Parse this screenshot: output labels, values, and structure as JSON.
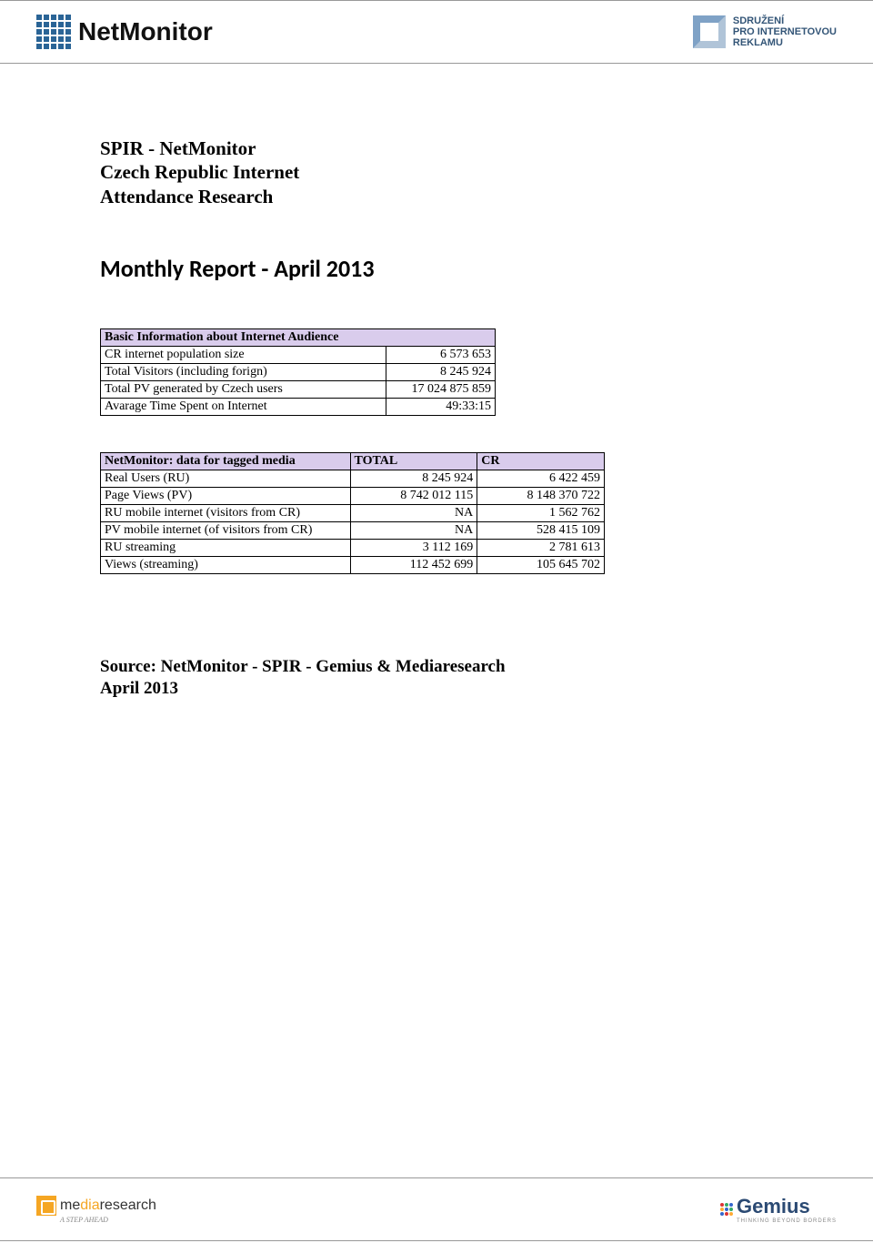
{
  "header": {
    "brand_main": "NetMonitor",
    "right_line1": "SDRUŽENÍ",
    "right_line2": "PRO INTERNETOVOU",
    "right_line3": "REKLAMU"
  },
  "title": {
    "line1": "SPIR - NetMonitor",
    "line2": "Czech Republic Internet",
    "line3": "Attendance Research"
  },
  "report_heading": "Monthly Report - April 2013",
  "table1": {
    "header": "Basic Information about Internet Audience",
    "rows": [
      {
        "label": "CR internet population size",
        "value": "6 573 653"
      },
      {
        "label": "Total Visitors (including forign)",
        "value": "8 245 924"
      },
      {
        "label": "Total PV generated by Czech users",
        "value": "17 024 875 859"
      },
      {
        "label": "Avarage Time Spent on Internet",
        "value": "49:33:15"
      }
    ]
  },
  "table2": {
    "header": {
      "c1": "NetMonitor: data for tagged media",
      "c2": "TOTAL",
      "c3": "CR"
    },
    "rows": [
      {
        "label": "Real Users (RU)",
        "total": "8 245 924",
        "cr": "6 422 459"
      },
      {
        "label": "Page Views (PV)",
        "total": "8 742 012 115",
        "cr": "8 148 370 722"
      },
      {
        "label": "RU mobile internet (visitors from CR)",
        "total": "NA",
        "cr": "1 562 762"
      },
      {
        "label": "PV mobile internet (of visitors from CR)",
        "total": "NA",
        "cr": "528 415 109"
      },
      {
        "label": "RU streaming",
        "total": "3 112 169",
        "cr": "2 781 613"
      },
      {
        "label": "Views (streaming)",
        "total": "112 452 699",
        "cr": "105 645 702"
      }
    ]
  },
  "source": {
    "line1": "Source: NetMonitor - SPIR - Gemius & Mediaresearch",
    "line2": "April 2013"
  },
  "footer": {
    "left_brand_pre": "me",
    "left_brand_mid": "dia",
    "left_brand_post": "research",
    "left_tag": "A STEP AHEAD",
    "right_brand": "Gemius",
    "right_tag": "THINKING BEYOND BORDERS"
  },
  "colors": {
    "table_header_bg": "#d9ccec",
    "border": "#000000",
    "logo_blue": "#2a6496",
    "footer_orange": "#f5a623",
    "gemius_blue": "#2b4a73"
  }
}
